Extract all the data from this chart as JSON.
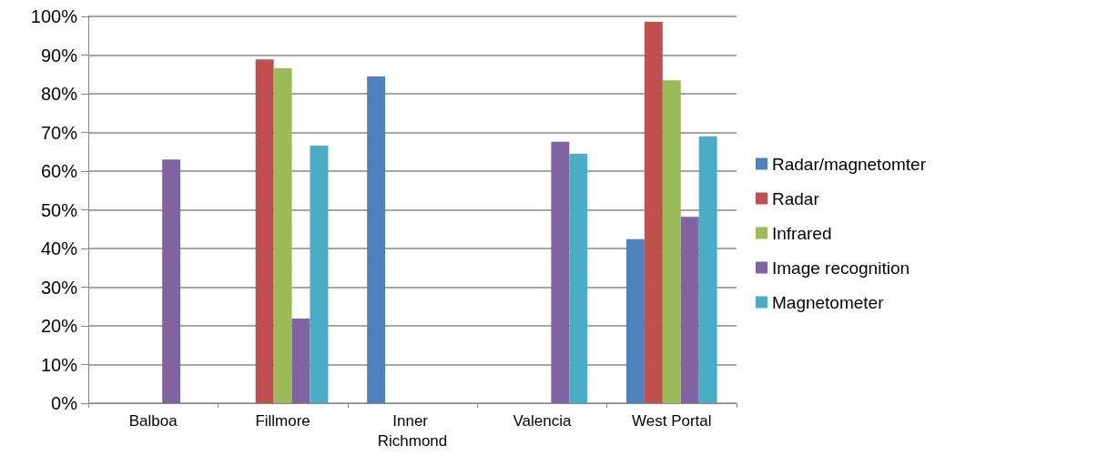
{
  "chart_data": {
    "type": "bar",
    "categories": [
      "Balboa",
      "Fillmore",
      "Inner Richmond",
      "Valencia",
      "West Portal"
    ],
    "series": [
      {
        "name": "Radar/magnetomter",
        "color": "#4f81bd",
        "values": [
          null,
          null,
          84.5,
          null,
          42.4
        ]
      },
      {
        "name": "Radar",
        "color": "#c0504d",
        "values": [
          null,
          88.9,
          null,
          null,
          98.6
        ]
      },
      {
        "name": "Infrared",
        "color": "#9bbb59",
        "values": [
          null,
          86.6,
          null,
          null,
          83.5
        ]
      },
      {
        "name": "Image recognition",
        "color": "#8064a2",
        "values": [
          63,
          21.9,
          null,
          67.6,
          48.2
        ]
      },
      {
        "name": "Magnetometer",
        "color": "#4bacc6",
        "values": [
          null,
          66.6,
          null,
          64.5,
          69
        ]
      }
    ],
    "ylim": [
      0,
      100
    ],
    "yticks": [
      {
        "value": 0,
        "label": "0%"
      },
      {
        "value": 10,
        "label": "10%"
      },
      {
        "value": 20,
        "label": "20%"
      },
      {
        "value": 30,
        "label": "30%"
      },
      {
        "value": 40,
        "label": "40%"
      },
      {
        "value": 50,
        "label": "50%"
      },
      {
        "value": 60,
        "label": "60%"
      },
      {
        "value": 70,
        "label": "70%"
      },
      {
        "value": 80,
        "label": "80%"
      },
      {
        "value": 90,
        "label": "90%"
      },
      {
        "value": 100,
        "label": "100%"
      }
    ],
    "grid": "y",
    "legend": "right"
  }
}
